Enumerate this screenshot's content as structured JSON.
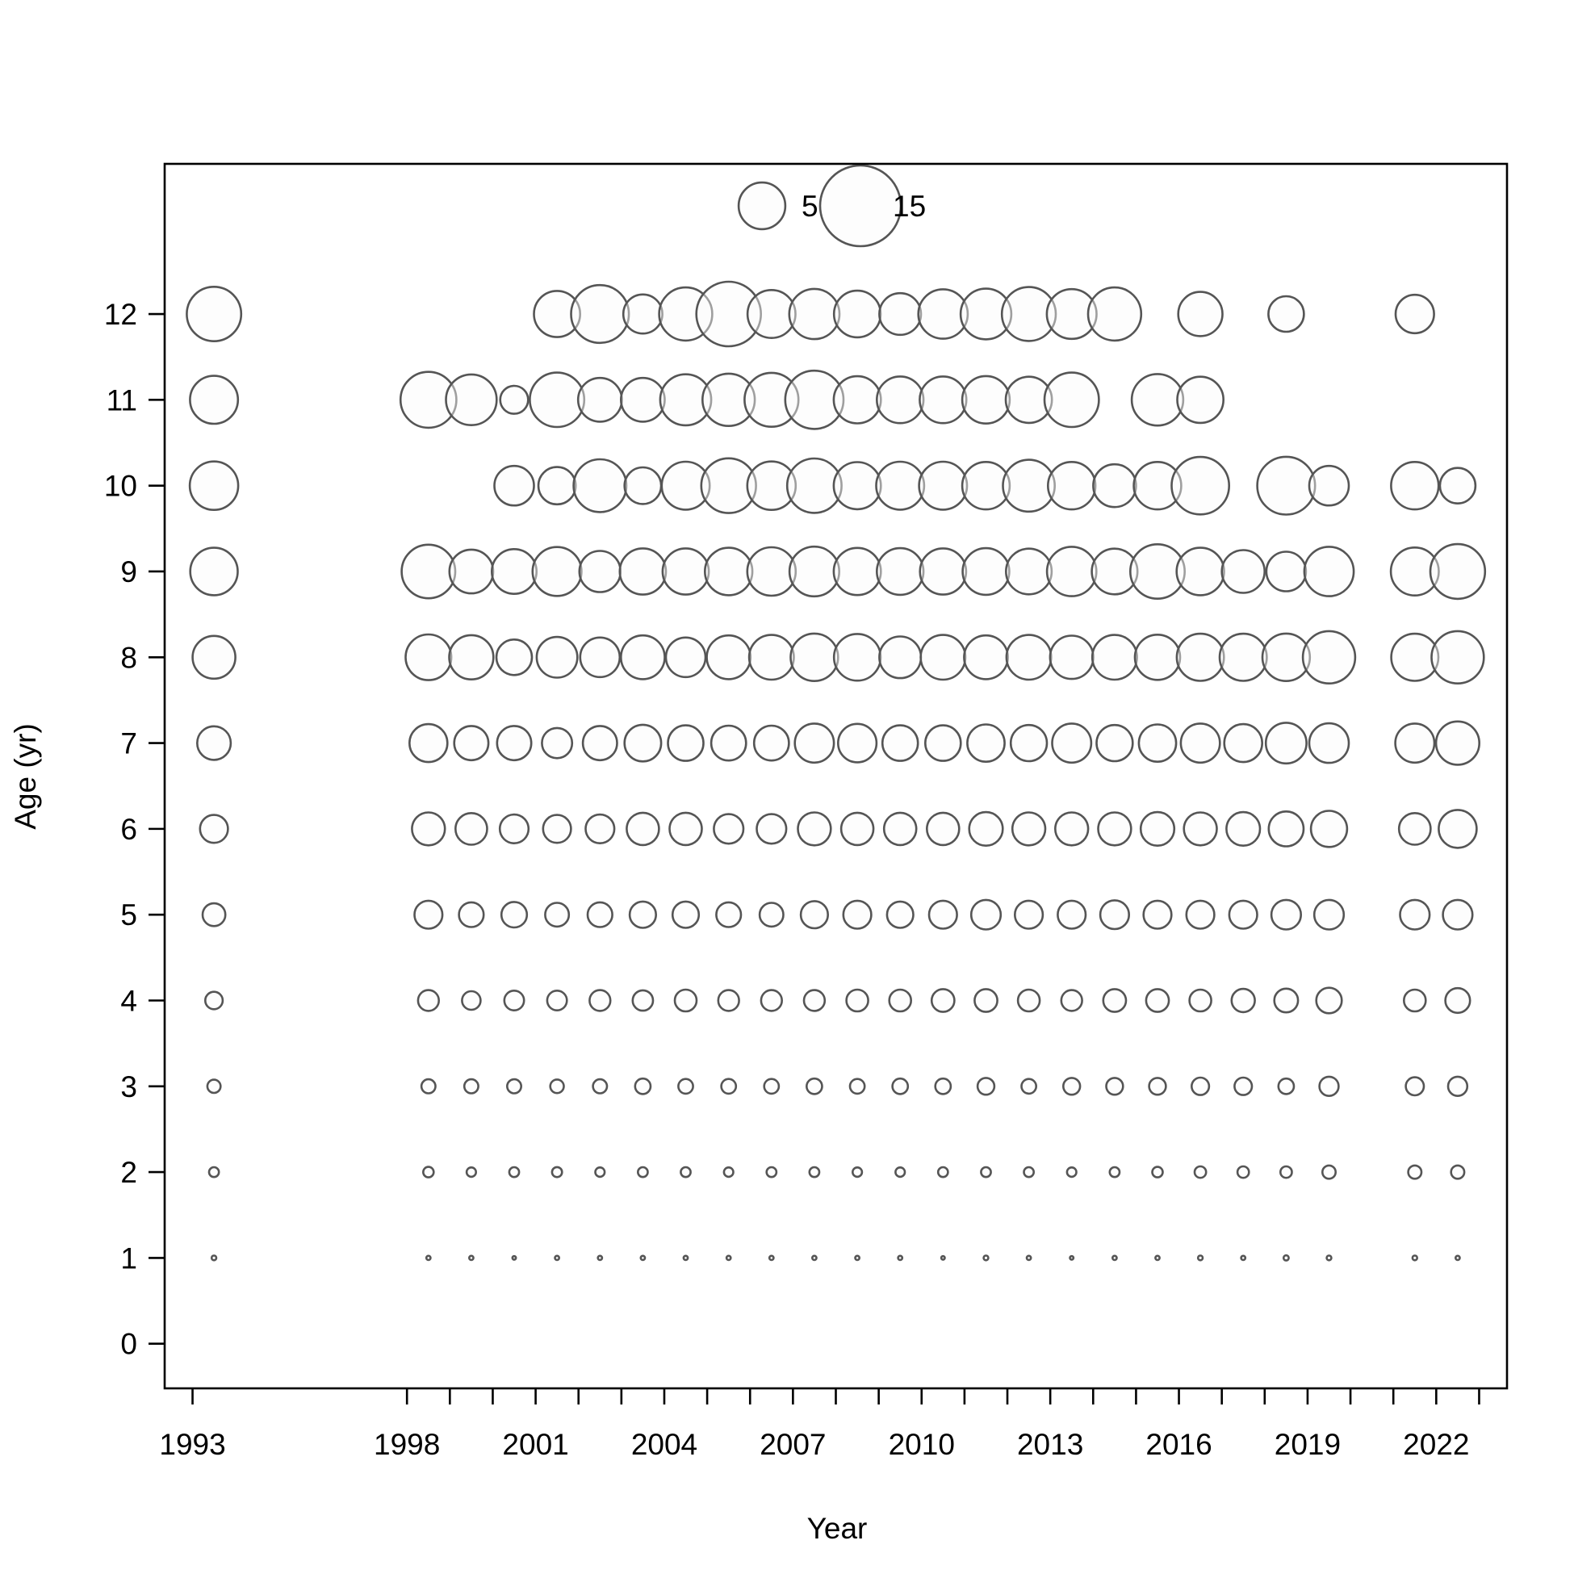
{
  "chart_data": {
    "type": "bubble",
    "xlabel": "Year",
    "ylabel": "Age (yr)",
    "xlim": [
      1992.35,
      2023.65
    ],
    "ylim": [
      -0.52,
      13.75
    ],
    "x_ticks": [
      1993,
      1998,
      1999,
      2000,
      2001,
      2002,
      2003,
      2004,
      2005,
      2006,
      2007,
      2008,
      2009,
      2010,
      2011,
      2012,
      2013,
      2014,
      2015,
      2016,
      2017,
      2018,
      2019,
      2020,
      2021,
      2022,
      2023
    ],
    "x_tick_labels": [
      "1993",
      "1998",
      "2001",
      "2004",
      "2007",
      "2010",
      "2013",
      "2016",
      "2019",
      "2022"
    ],
    "y_ticks": [
      0,
      1,
      2,
      3,
      4,
      5,
      6,
      7,
      8,
      9,
      10,
      11,
      12
    ],
    "legend": {
      "placement": "top",
      "sizes": [
        5,
        15
      ],
      "labels": [
        "5",
        "15"
      ]
    },
    "years": [
      1993.5,
      1998.5,
      1999.5,
      2000.5,
      2001.5,
      2002.5,
      2003.5,
      2004.5,
      2005.5,
      2006.5,
      2007.5,
      2008.5,
      2009.5,
      2010.5,
      2011.5,
      2012.5,
      2013.5,
      2014.5,
      2015.5,
      2016.5,
      2017.5,
      2018.5,
      2019.5,
      2021.5,
      2022.5
    ],
    "ages": [
      0,
      1,
      2,
      3,
      4,
      5,
      6,
      7,
      8,
      9,
      10,
      11,
      12
    ],
    "values": [
      [
        0,
        0,
        0,
        0,
        0,
        0,
        0,
        0,
        0,
        0,
        0,
        0,
        0,
        0,
        0,
        0,
        0,
        0,
        0,
        0,
        0,
        0,
        0,
        0,
        0
      ],
      [
        0.05,
        0.04,
        0.04,
        0.03,
        0.04,
        0.04,
        0.04,
        0.04,
        0.04,
        0.04,
        0.04,
        0.04,
        0.04,
        0.03,
        0.05,
        0.04,
        0.03,
        0.04,
        0.04,
        0.05,
        0.04,
        0.06,
        0.05,
        0.05,
        0.04
      ],
      [
        0.22,
        0.25,
        0.2,
        0.22,
        0.23,
        0.2,
        0.22,
        0.22,
        0.2,
        0.22,
        0.22,
        0.2,
        0.2,
        0.22,
        0.22,
        0.22,
        0.2,
        0.22,
        0.25,
        0.3,
        0.3,
        0.3,
        0.4,
        0.4,
        0.4
      ],
      [
        0.4,
        0.45,
        0.45,
        0.45,
        0.42,
        0.45,
        0.55,
        0.5,
        0.5,
        0.5,
        0.55,
        0.5,
        0.55,
        0.55,
        0.65,
        0.5,
        0.65,
        0.65,
        0.65,
        0.7,
        0.7,
        0.55,
        0.85,
        0.75,
        0.85
      ],
      [
        0.7,
        1.0,
        0.8,
        0.9,
        0.9,
        1.0,
        0.95,
        1.1,
        1.0,
        1.0,
        1.0,
        1.1,
        1.1,
        1.2,
        1.2,
        1.1,
        1.0,
        1.2,
        1.2,
        1.1,
        1.25,
        1.3,
        1.5,
        1.1,
        1.4
      ],
      [
        1.2,
        1.8,
        1.4,
        1.5,
        1.3,
        1.4,
        1.6,
        1.6,
        1.4,
        1.3,
        1.7,
        1.8,
        1.6,
        1.8,
        2.0,
        1.8,
        1.8,
        1.9,
        1.8,
        1.8,
        1.8,
        2.0,
        2.0,
        2.0,
        2.0
      ],
      [
        1.8,
        2.5,
        2.3,
        1.9,
        1.8,
        1.9,
        2.4,
        2.4,
        2.0,
        2.0,
        2.5,
        2.4,
        2.4,
        2.4,
        2.6,
        2.5,
        2.5,
        2.5,
        2.6,
        2.5,
        2.6,
        2.8,
        3.0,
        2.3,
        3.3
      ],
      [
        2.6,
        3.3,
        2.7,
        2.7,
        2.1,
        2.7,
        3.1,
        2.9,
        2.8,
        2.8,
        3.5,
        3.4,
        2.9,
        2.9,
        3.2,
        3.0,
        3.5,
        3.0,
        3.2,
        3.5,
        3.3,
        3.8,
        3.6,
        3.5,
        4.3
      ],
      [
        4.2,
        4.8,
        4.5,
        2.9,
        3.8,
        3.6,
        4.4,
        3.6,
        4.4,
        4.6,
        5.2,
        5.0,
        4.0,
        4.6,
        4.4,
        4.6,
        4.3,
        4.6,
        4.7,
        5.1,
        5.1,
        5.2,
        6.3,
        5.1,
        6.3
      ],
      [
        5.2,
        6.6,
        4.4,
        4.6,
        5.5,
        3.9,
        4.9,
        4.9,
        5.2,
        5.4,
        5.7,
        5.1,
        5.0,
        4.9,
        5.0,
        4.8,
        5.6,
        4.8,
        6.8,
        5.2,
        4.2,
        3.6,
        5.6,
        5.3,
        6.9
      ],
      [
        5.4,
        0,
        0,
        3.6,
        3.2,
        6.4,
        3.1,
        5.3,
        6.9,
        5.4,
        6.8,
        5.1,
        5.3,
        5.3,
        5.2,
        6.2,
        5.2,
        4.2,
        5.2,
        7.6,
        0,
        7.7,
        3.6,
        5.2,
        2.9
      ],
      [
        5.3,
        7.2,
        5.9,
        1.8,
        6.8,
        4.4,
        4.4,
        6.0,
        6.3,
        6.7,
        7.8,
        5.1,
        5.0,
        5.0,
        5.2,
        4.9,
        6.8,
        0,
        6.1,
        4.9,
        0,
        0,
        0,
        0,
        0
      ],
      [
        6.8,
        0,
        0,
        0,
        4.9,
        7.7,
        3.5,
        6.5,
        9.6,
        5.3,
        5.8,
        5.0,
        4.0,
        5.6,
        5.9,
        6.7,
        5.7,
        6.5,
        0,
        4.5,
        0,
        2.9,
        0,
        3.4,
        0
      ]
    ]
  }
}
